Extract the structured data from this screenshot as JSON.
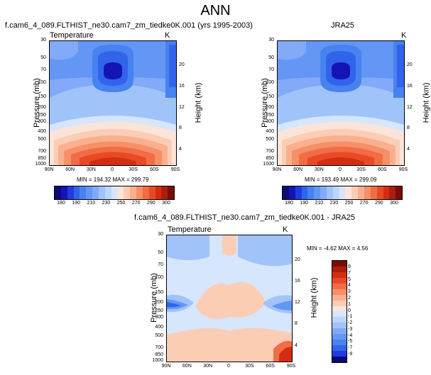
{
  "title": "ANN",
  "panel1": {
    "subtitle": "f.cam6_4_089.FLTHIST_ne30.cam7_zm_tiedke0K.001 (yrs 1995-2003)",
    "label_left": "Temperature",
    "label_right": "K",
    "min_max": "MIN = 194.32  MAX = 299.79"
  },
  "panel2": {
    "subtitle": "JRA25",
    "label_right": "K",
    "min_max": "MIN = 193.49  MAX = 299.09"
  },
  "panel3": {
    "subtitle": "f.cam6_4_089.FLTHIST_ne30.cam7_zm_tiedke0K.001 - JRA25",
    "label_left": "Temperature",
    "label_right": "K",
    "min_max": "MIN =  -4.62  MAX =   4.56"
  },
  "axes": {
    "ylabel": "Pressure (mb)",
    "y2label": "Height (km)",
    "pressure_ticks": [
      "30",
      "50",
      "70",
      "100",
      "150",
      "200",
      "250",
      "300",
      "400",
      "500",
      "700",
      "850",
      "1000"
    ],
    "height_ticks": [
      "20",
      "16",
      "12",
      "8",
      "4"
    ],
    "lat_ticks": [
      "90N",
      "60N",
      "30N",
      "0",
      "30S",
      "60S",
      "90S"
    ]
  },
  "colorbar_main": {
    "labels": [
      "180",
      "190",
      "210",
      "230",
      "250",
      "270",
      "290",
      "300"
    ],
    "colors": [
      "#0a0a78",
      "#1414b4",
      "#1e3cdc",
      "#3264eb",
      "#4682f0",
      "#6496f5",
      "#82aaf8",
      "#a0c3fa",
      "#bcd6fc",
      "#d6e6fd",
      "#fde4d8",
      "#fccdb5",
      "#fab08e",
      "#f78f68",
      "#f26c45",
      "#e84a26",
      "#d42d14",
      "#aa1e0c",
      "#7a0c06"
    ]
  },
  "colorbar_diff": {
    "labels": [
      "9",
      "7",
      "5",
      "4",
      "3",
      "2",
      "1",
      "0",
      "-1",
      "-2",
      "-3",
      "-4",
      "-5",
      "-7",
      "-9"
    ],
    "colors": [
      "#7a0c06",
      "#aa1e0c",
      "#d42d14",
      "#e84a26",
      "#f26c45",
      "#f78f68",
      "#fab08e",
      "#fccdb5",
      "#fde4d8",
      "#d6e6fd",
      "#bcd6fc",
      "#a0c3fa",
      "#82aaf8",
      "#6496f5",
      "#4682f0",
      "#3264eb",
      "#1e3cdc",
      "#0a0a78"
    ]
  },
  "chart_data": [
    {
      "type": "heatmap",
      "title": "f.cam6_4_089.FLTHIST_ne30.cam7_zm_tiedke0K.001 (yrs 1995-2003)",
      "variable": "Temperature",
      "units": "K",
      "x": [
        "90N",
        "60N",
        "30N",
        "0",
        "30S",
        "60S",
        "90S"
      ],
      "y_pressure_mb": [
        30,
        50,
        70,
        100,
        150,
        200,
        250,
        300,
        400,
        500,
        700,
        850,
        1000
      ],
      "min": 194.32,
      "max": 299.79,
      "levels": [
        180,
        190,
        200,
        210,
        220,
        230,
        240,
        250,
        260,
        270,
        280,
        290,
        300
      ]
    },
    {
      "type": "heatmap",
      "title": "JRA25",
      "variable": "Temperature",
      "units": "K",
      "x": [
        "90N",
        "60N",
        "30N",
        "0",
        "30S",
        "60S",
        "90S"
      ],
      "y_pressure_mb": [
        30,
        50,
        70,
        100,
        150,
        200,
        250,
        300,
        400,
        500,
        700,
        850,
        1000
      ],
      "min": 193.49,
      "max": 299.09,
      "levels": [
        180,
        190,
        200,
        210,
        220,
        230,
        240,
        250,
        260,
        270,
        280,
        290,
        300
      ]
    },
    {
      "type": "heatmap",
      "title": "f.cam6_4_089.FLTHIST_ne30.cam7_zm_tiedke0K.001 - JRA25",
      "variable": "Temperature",
      "units": "K",
      "x": [
        "90N",
        "60N",
        "30N",
        "0",
        "30S",
        "60S",
        "90S"
      ],
      "y_pressure_mb": [
        30,
        50,
        70,
        100,
        150,
        200,
        250,
        300,
        400,
        500,
        700,
        850,
        1000
      ],
      "min": -4.62,
      "max": 4.56,
      "levels": [
        -9,
        -7,
        -5,
        -4,
        -3,
        -2,
        -1,
        0,
        1,
        2,
        3,
        4,
        5,
        7,
        9
      ]
    }
  ]
}
